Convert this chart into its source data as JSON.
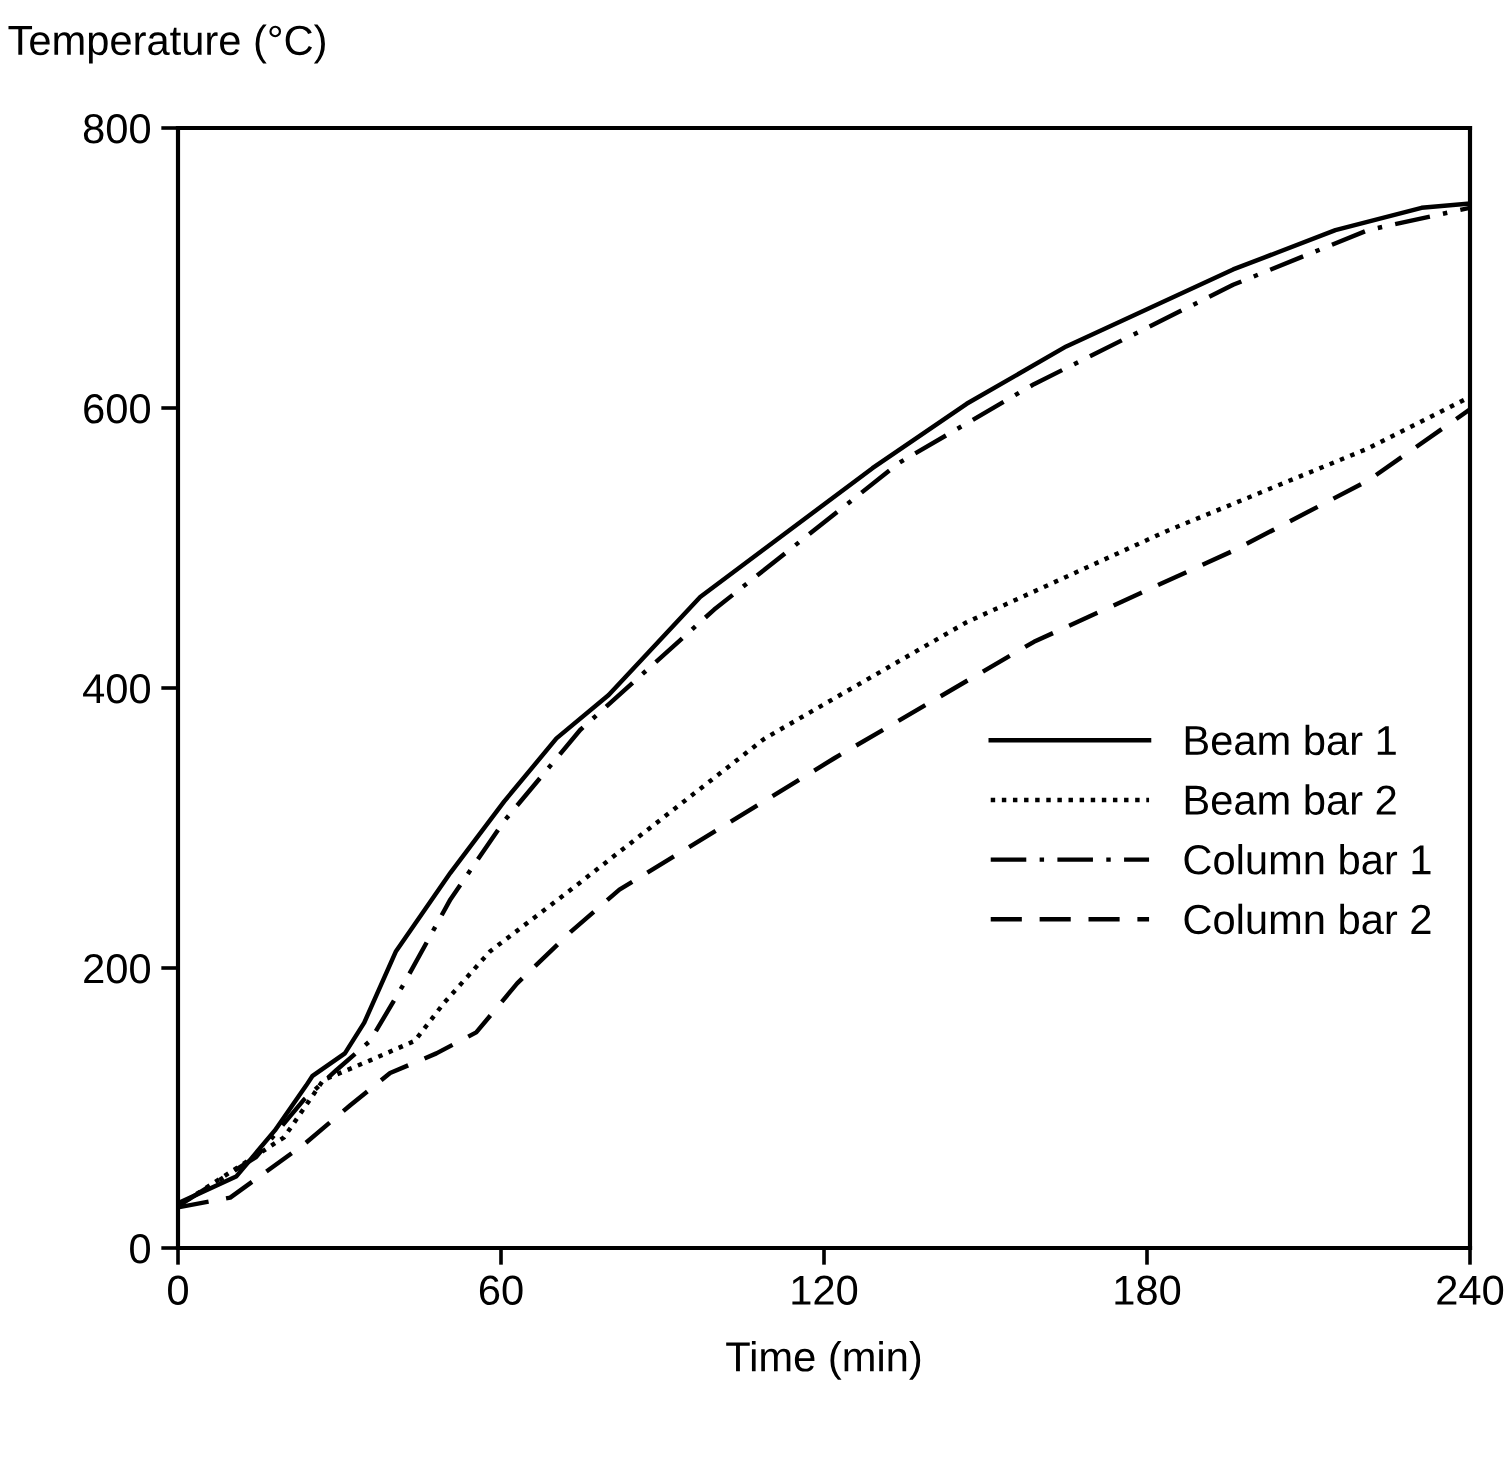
{
  "chart_data": {
    "type": "line",
    "ylabel": "Temperature (°C)",
    "xlabel": "Time (min)",
    "xlim": [
      0,
      240
    ],
    "ylim": [
      0,
      800
    ],
    "xticks": [
      0,
      60,
      120,
      180,
      240
    ],
    "yticks": [
      0,
      200,
      400,
      600,
      800
    ],
    "grid": false,
    "legend": "right",
    "marker": "none",
    "series": [
      {
        "name": "Beam bar 1",
        "color": "#000000",
        "line_style": "solid",
        "x": [
          0,
          10.8,
          18,
          23.8,
          25,
          31,
          34.6,
          40.5,
          50.6,
          60.6,
          70.3,
          80,
          97,
          129,
          146.5,
          165,
          196,
          215,
          231,
          240
        ],
        "values": [
          32,
          51,
          84,
          116,
          123,
          139,
          161,
          212,
          268,
          319,
          364,
          395,
          465,
          557,
          603,
          644,
          699,
          727,
          743,
          746
        ]
      },
      {
        "name": "Beam bar 2",
        "color": "#000000",
        "line_style": "dotted",
        "x": [
          0,
          19.7,
          27,
          35.7,
          44,
          49.4,
          58,
          73,
          109,
          146.5,
          183.6,
          221,
          240
        ],
        "values": [
          30,
          79,
          120,
          134,
          148,
          175,
          212,
          256,
          364,
          447,
          512,
          571,
          608
        ]
      },
      {
        "name": "Column bar 1",
        "color": "#000000",
        "line_style": "dashdot",
        "x": [
          0,
          14.5,
          23.4,
          29.4,
          35.7,
          42,
          50.6,
          60.6,
          74.7,
          99.6,
          134,
          159,
          196,
          221,
          240
        ],
        "values": [
          30,
          65,
          106,
          127,
          148,
          189,
          249,
          305,
          370,
          456,
          561,
          617,
          688,
          727,
          743
        ]
      },
      {
        "name": "Column bar 2",
        "color": "#000000",
        "line_style": "dashed",
        "x": [
          0,
          9.7,
          23.4,
          32,
          39.4,
          48,
          55.4,
          63,
          73,
          82,
          122,
          159,
          196,
          221,
          240
        ],
        "values": [
          29,
          36,
          74,
          102,
          125,
          139,
          154,
          189,
          226,
          256,
          350,
          433,
          498,
          548,
          599
        ]
      }
    ]
  }
}
